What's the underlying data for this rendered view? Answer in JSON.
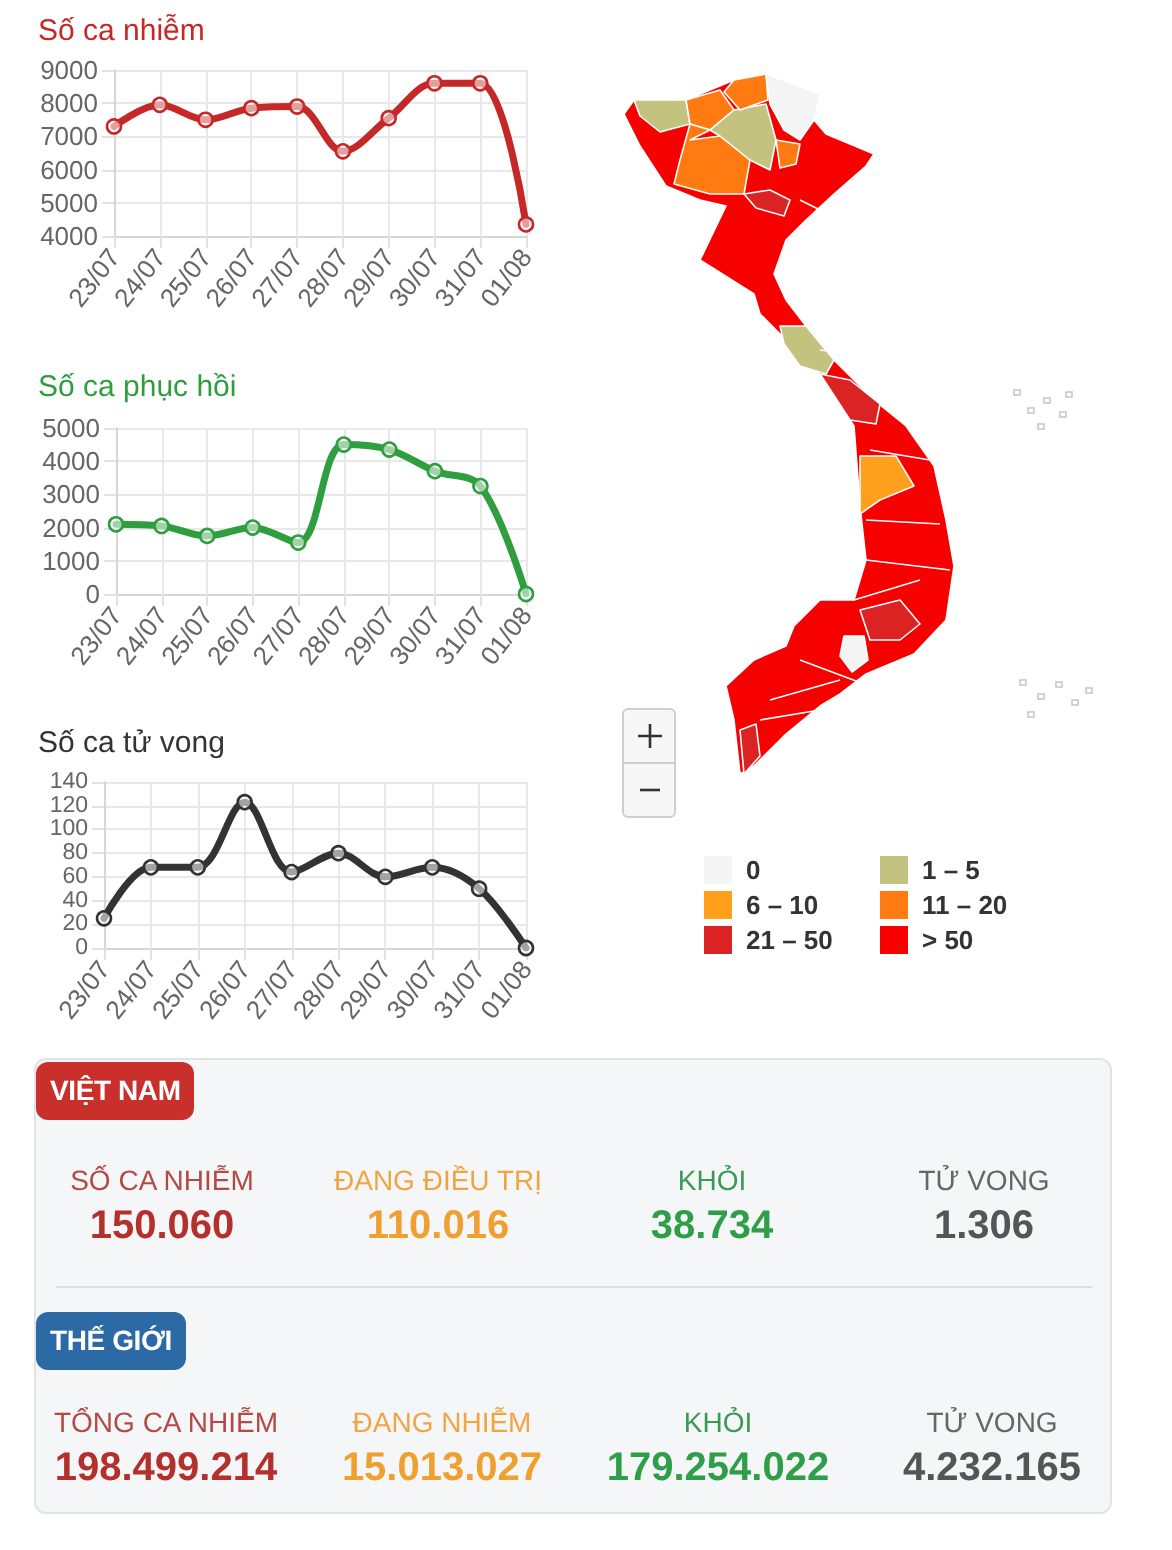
{
  "chart_data": [
    {
      "type": "line",
      "title": "Số ca nhiễm",
      "categories": [
        "23/07",
        "24/07",
        "25/07",
        "26/07",
        "27/07",
        "28/07",
        "29/07",
        "30/07",
        "31/07",
        "01/08"
      ],
      "values": [
        7300,
        7950,
        7500,
        7850,
        7900,
        6550,
        7550,
        8600,
        8600,
        4350
      ],
      "color": "#c62828",
      "ylim": [
        4000,
        9000
      ],
      "yticks": [
        4000,
        5000,
        6000,
        7000,
        8000,
        9000
      ],
      "grid": true,
      "marker": "circle"
    },
    {
      "type": "line",
      "title": "Số ca phục hồi",
      "categories": [
        "23/07",
        "24/07",
        "25/07",
        "26/07",
        "27/07",
        "28/07",
        "29/07",
        "30/07",
        "31/07",
        "01/08"
      ],
      "values": [
        2100,
        2050,
        1750,
        2000,
        1550,
        4500,
        4350,
        3700,
        3250,
        0
      ],
      "color": "#2e9e3e",
      "ylim": [
        0,
        5000
      ],
      "yticks": [
        0,
        1000,
        2000,
        3000,
        4000,
        5000
      ],
      "grid": true,
      "marker": "circle"
    },
    {
      "type": "line",
      "title": "Số ca tử vong",
      "categories": [
        "23/07",
        "24/07",
        "25/07",
        "26/07",
        "27/07",
        "28/07",
        "29/07",
        "30/07",
        "31/07",
        "01/08"
      ],
      "values": [
        25,
        68,
        68,
        123,
        64,
        80,
        60,
        68,
        50,
        0
      ],
      "color": "#333333",
      "ylim": [
        0,
        140
      ],
      "yticks": [
        0,
        20,
        40,
        60,
        80,
        100,
        120,
        140
      ],
      "grid": true,
      "marker": "circle"
    },
    {
      "type": "other",
      "categories": [
        "0",
        "1 – 5",
        "6 – 10",
        "11 – 20",
        "21 – 50",
        "> 50"
      ],
      "colors": [
        "#f4f4f4",
        "#c3c27f",
        "#ff9f1c",
        "#ff7a10",
        "#dc2323",
        "#f70000"
      ]
    },
    {
      "type": "other",
      "annotations": [
        "VIỆT NAM",
        "SỐ CA NHIỄM",
        "150.060",
        "ĐANG ĐIỀU TRỊ",
        "110.016",
        "KHỎI",
        "38.734",
        "TỬ VONG",
        "1.306",
        "THẾ GIỚI",
        "TỔNG CA NHIỄM",
        "198.499.214",
        "ĐANG NHIỄM",
        "15.013.027",
        "KHỎI",
        "179.254.022",
        "TỬ VONG",
        "4.232.165"
      ]
    }
  ]
}
